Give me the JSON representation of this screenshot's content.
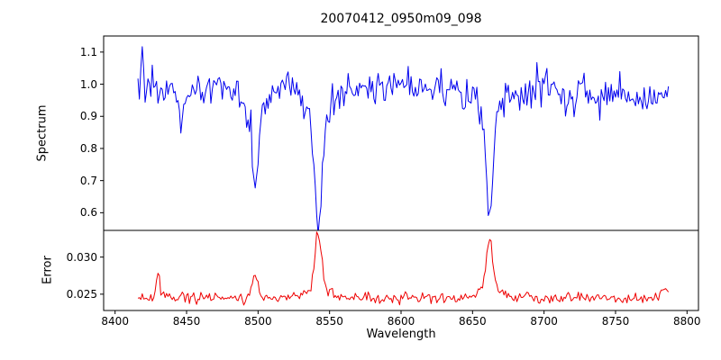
{
  "chart_data": {
    "type": "line",
    "title": "20070412_0950m09_098",
    "xlabel": "Wavelength",
    "background": "#ffffff",
    "grid": false,
    "xlim": [
      8392,
      8808
    ],
    "xticks": [
      8400,
      8450,
      8500,
      8550,
      8600,
      8650,
      8700,
      8750,
      8800
    ],
    "xtick_labels": [
      "8400",
      "8450",
      "8500",
      "8550",
      "8600",
      "8650",
      "8700",
      "8750",
      "8800"
    ],
    "x_start": 8416,
    "x_end": 8787,
    "x_step": 1.0,
    "panels": [
      {
        "name": "spectrum",
        "ylabel": "Spectrum",
        "color": "#0000ee",
        "ylim": [
          0.545,
          1.15
        ],
        "yticks": [
          0.6,
          0.7,
          0.8,
          0.9,
          1.0,
          1.1
        ],
        "ytick_labels": [
          "0.6",
          "0.7",
          "0.8",
          "0.9",
          "1.0",
          "1.1"
        ],
        "baseline": 0.99,
        "noise_sigma": 0.027,
        "features": [
          {
            "center": 8419,
            "amp": 0.115,
            "width": 0.8
          },
          {
            "center": 8446,
            "amp": -0.12,
            "width": 1.0
          },
          {
            "center": 8498.02,
            "amp": -0.2,
            "width": 2.0
          },
          {
            "center": 8498.02,
            "amp": -0.085,
            "width": 7.0
          },
          {
            "center": 8542.09,
            "amp": -0.33,
            "width": 2.4
          },
          {
            "center": 8542.09,
            "amp": -0.1,
            "width": 9.0
          },
          {
            "center": 8662.14,
            "amp": -0.32,
            "width": 2.2
          },
          {
            "center": 8662.14,
            "amp": -0.1,
            "width": 8.0
          },
          {
            "center": 8755,
            "amp": -0.03,
            "width": 35.0
          }
        ]
      },
      {
        "name": "error",
        "ylabel": "Error",
        "color": "#ee0000",
        "ylim": [
          0.0228,
          0.0336
        ],
        "yticks": [
          0.025,
          0.03
        ],
        "ytick_labels": [
          "0.025",
          "0.030"
        ],
        "baseline": 0.0245,
        "noise_sigma": 0.00035,
        "features": [
          {
            "center": 8430,
            "amp": 0.0028,
            "width": 1.5
          },
          {
            "center": 8498,
            "amp": 0.0033,
            "width": 1.8
          },
          {
            "center": 8542,
            "amp": 0.0075,
            "width": 2.3
          },
          {
            "center": 8542,
            "amp": 0.0013,
            "width": 8.0
          },
          {
            "center": 8662,
            "amp": 0.0062,
            "width": 2.2
          },
          {
            "center": 8662,
            "amp": 0.0015,
            "width": 7.0
          },
          {
            "center": 8786,
            "amp": 0.001,
            "width": 5.0
          }
        ]
      }
    ]
  }
}
